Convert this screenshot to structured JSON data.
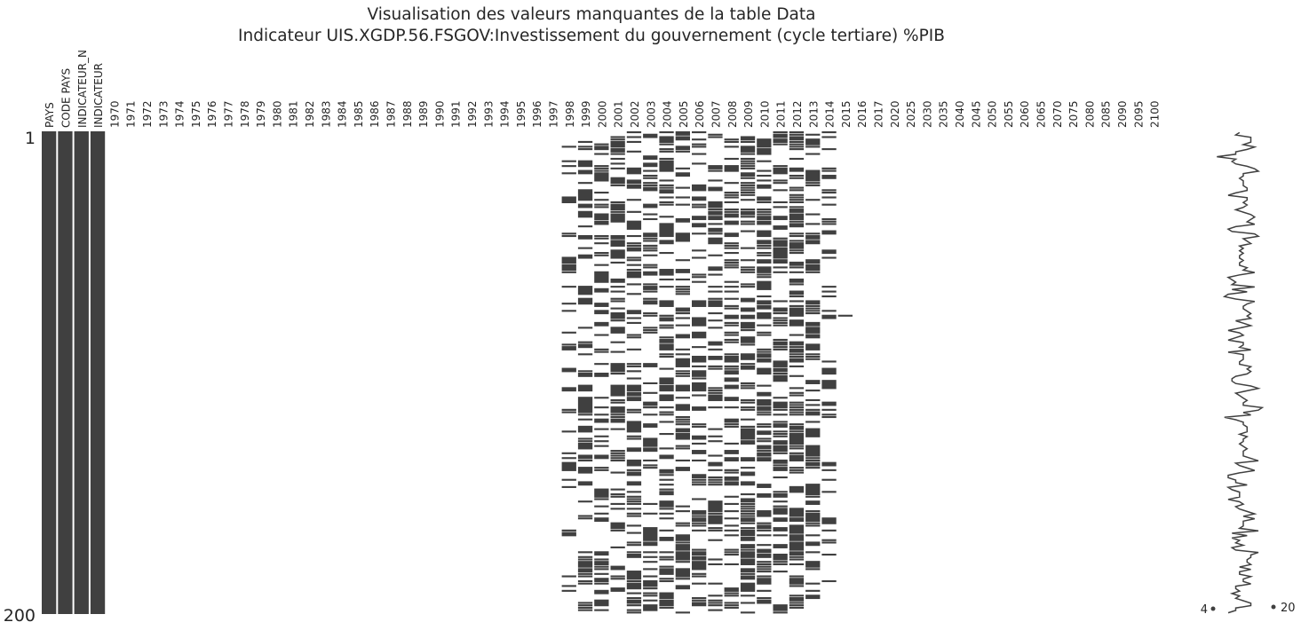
{
  "chart_data": {
    "type": "heatmap",
    "title": "Visualisation des valeurs manquantes de la table Data",
    "subtitle": "Indicateur UIS.XGDP.56.FSGOV:Investissement du gouvernement (cycle tertiare) %PIB",
    "columns": [
      "PAYS",
      "CODE PAYS",
      "INDICATEUR_N",
      "INDICATEUR",
      "1970",
      "1971",
      "1972",
      "1973",
      "1974",
      "1975",
      "1976",
      "1977",
      "1978",
      "1979",
      "1980",
      "1981",
      "1982",
      "1983",
      "1984",
      "1985",
      "1986",
      "1987",
      "1988",
      "1989",
      "1990",
      "1991",
      "1992",
      "1993",
      "1994",
      "1995",
      "1996",
      "1997",
      "1998",
      "1999",
      "2000",
      "2001",
      "2002",
      "2003",
      "2004",
      "2005",
      "2006",
      "2007",
      "2008",
      "2009",
      "2010",
      "2011",
      "2012",
      "2013",
      "2014",
      "2015",
      "2016",
      "2017",
      "2020",
      "2025",
      "2030",
      "2035",
      "2040",
      "2045",
      "2050",
      "2055",
      "2060",
      "2065",
      "2070",
      "2075",
      "2080",
      "2085",
      "2090",
      "2095",
      "2100"
    ],
    "row_count": 200,
    "row_labels": [
      "1",
      "200"
    ],
    "fully_populated_columns": [
      "PAYS",
      "CODE PAYS",
      "INDICATEUR_N",
      "INDICATEUR"
    ],
    "sparse_columns": [
      "1998",
      "1999",
      "2000",
      "2001",
      "2002",
      "2003",
      "2004",
      "2005",
      "2006",
      "2007",
      "2008",
      "2009",
      "2010",
      "2011",
      "2012",
      "2013",
      "2014",
      "2015"
    ],
    "sparkline": {
      "min_label": "4",
      "max_label": "20",
      "min_value": 4,
      "max_value": 20
    },
    "colors": {
      "filled": "#404040",
      "empty": "#ffffff",
      "text": "#262626"
    }
  }
}
